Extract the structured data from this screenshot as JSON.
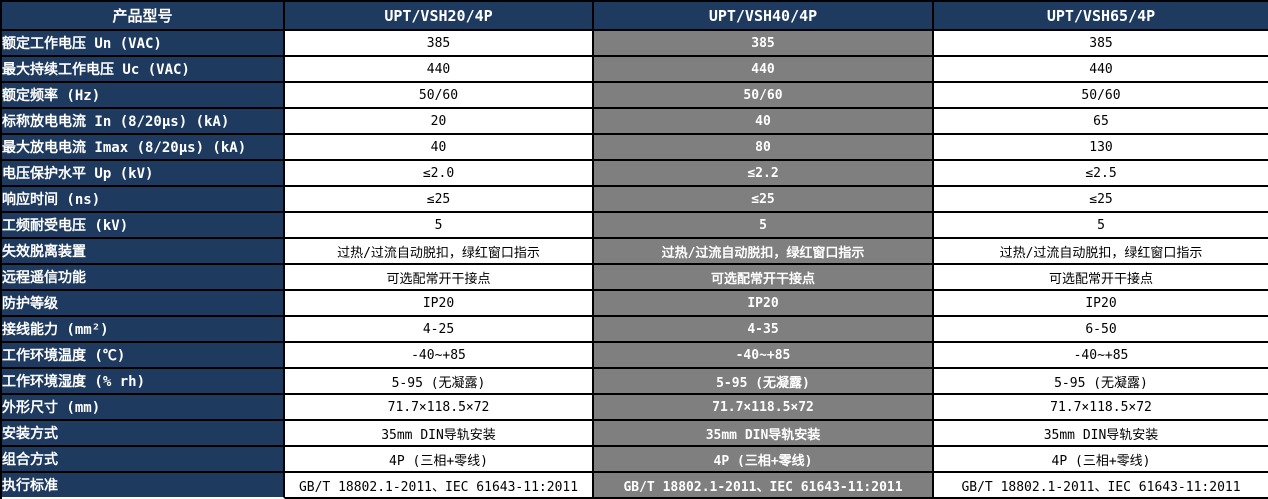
{
  "colors": {
    "header_bg": "#1e3a5f",
    "label_bg": "#1e3a5f",
    "highlight_bg": "#7f7f7f",
    "border_color": "#000000",
    "separator_color": "#ffffff",
    "header_text": "#ffffff",
    "label_text": "#ffffff",
    "value_text": "#000000",
    "highlight_text": "#ffffff",
    "cell_bg": "#ffffff"
  },
  "table": {
    "header": [
      "产品型号",
      "UPT/VSH20/4P",
      "UPT/VSH40/4P",
      "UPT/VSH65/4P"
    ],
    "rows": [
      {
        "label": "额定工作电压 Un (VAC)",
        "values": [
          "385",
          "385",
          "385"
        ]
      },
      {
        "label": "最大持续工作电压 Uc (VAC)",
        "values": [
          "440",
          "440",
          "440"
        ]
      },
      {
        "label": "额定频率 (Hz)",
        "values": [
          "50/60",
          "50/60",
          "50/60"
        ]
      },
      {
        "label": "标称放电电流 In (8/20μs) (kA)",
        "values": [
          "20",
          "40",
          "65"
        ]
      },
      {
        "label": "最大放电电流 Imax (8/20μs) (kA)",
        "values": [
          "40",
          "80",
          "130"
        ]
      },
      {
        "label": "电压保护水平 Up (kV)",
        "values": [
          "≤2.0",
          "≤2.2",
          "≤2.5"
        ]
      },
      {
        "label": "响应时间 (ns)",
        "values": [
          "≤25",
          "≤25",
          "≤25"
        ]
      },
      {
        "label": "工频耐受电压 (kV)",
        "values": [
          "5",
          "5",
          "5"
        ]
      },
      {
        "label": "失效脱离装置",
        "values": [
          "过热/过流自动脱扣，绿红窗口指示",
          "过热/过流自动脱扣，绿红窗口指示",
          "过热/过流自动脱扣，绿红窗口指示"
        ]
      },
      {
        "label": "远程遥信功能",
        "values": [
          "可选配常开干接点",
          "可选配常开干接点",
          "可选配常开干接点"
        ]
      },
      {
        "label": "防护等级",
        "values": [
          "IP20",
          "IP20",
          "IP20"
        ]
      },
      {
        "label": "接线能力 (mm²)",
        "values": [
          "4-25",
          "4-35",
          "6-50"
        ]
      },
      {
        "label": "工作环境温度 (℃)",
        "values": [
          "-40~+85",
          "-40~+85",
          "-40~+85"
        ]
      },
      {
        "label": "工作环境湿度 (% rh)",
        "values": [
          "5-95 (无凝露)",
          "5-95 (无凝露)",
          "5-95 (无凝露)"
        ]
      },
      {
        "label": "外形尺寸 (mm)",
        "values": [
          "71.7×118.5×72",
          "71.7×118.5×72",
          "71.7×118.5×72"
        ]
      },
      {
        "label": "安装方式",
        "values": [
          "35mm DIN导轨安装",
          "35mm DIN导轨安装",
          "35mm DIN导轨安装"
        ]
      },
      {
        "label": "组合方式",
        "values": [
          "4P (三相+零线)",
          "4P (三相+零线)",
          "4P (三相+零线)"
        ]
      },
      {
        "label": "执行标准",
        "values": [
          "GB/T 18802.1-2011、IEC 61643-11:2011",
          "GB/T 18802.1-2011、IEC 61643-11:2011",
          "GB/T 18802.1-2011、IEC 61643-11:2011"
        ]
      }
    ]
  }
}
